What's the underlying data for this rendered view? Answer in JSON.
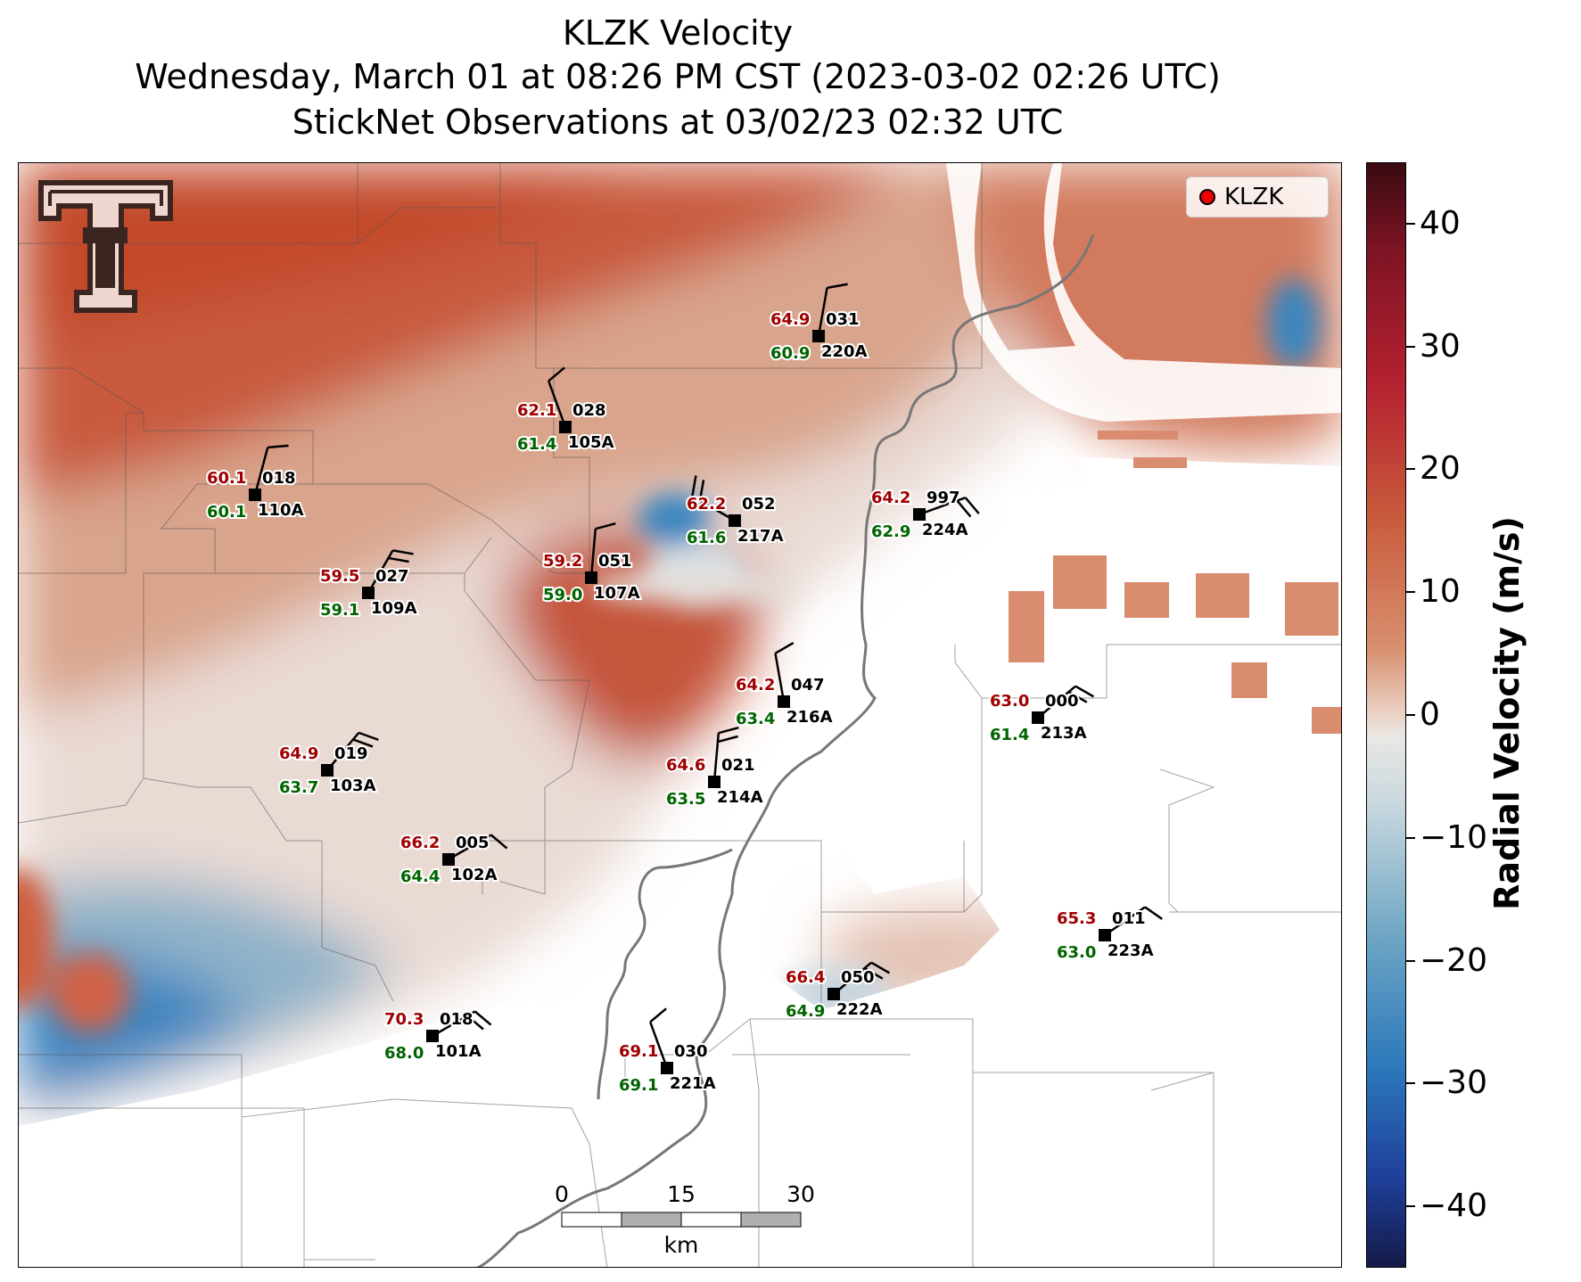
{
  "title": {
    "line1": "KLZK Velocity",
    "line2": "Wednesday, March 01 at 08:26 PM CST (2023-03-02 02:26 UTC)",
    "line3": "StickNet Observations at 03/02/23 02:32 UTC"
  },
  "legend": {
    "label": "KLZK"
  },
  "colorbar": {
    "label": "Radial Velocity (m/s)",
    "ticks": [
      "40",
      "30",
      "20",
      "10",
      "0",
      "−10",
      "−20",
      "−30",
      "−40"
    ],
    "range": [
      -45,
      45
    ]
  },
  "scalebar": {
    "labels": [
      "0",
      "15",
      "30"
    ],
    "unit": "km"
  },
  "logo": {
    "icon": "texas-tech-double-t-logo"
  },
  "colors": {
    "temp": "#a00000",
    "dew": "#006400",
    "id": "#000000",
    "river": "#777777"
  },
  "stations": [
    {
      "id": "220A",
      "temp": "64.9",
      "dew": "60.9",
      "dir": "031"
    },
    {
      "id": "105A",
      "temp": "62.1",
      "dew": "61.4",
      "dir": "028"
    },
    {
      "id": "110A",
      "temp": "60.1",
      "dew": "60.1",
      "dir": "018"
    },
    {
      "id": "217A",
      "temp": "62.2",
      "dew": "61.6",
      "dir": "052"
    },
    {
      "id": "224A",
      "temp": "64.2",
      "dew": "62.9",
      "dir": "997"
    },
    {
      "id": "107A",
      "temp": "59.2",
      "dew": "59.0",
      "dir": "051"
    },
    {
      "id": "109A",
      "temp": "59.5",
      "dew": "59.1",
      "dir": "027"
    },
    {
      "id": "216A",
      "temp": "64.2",
      "dew": "63.4",
      "dir": "047"
    },
    {
      "id": "213A",
      "temp": "63.0",
      "dew": "61.4",
      "dir": "000"
    },
    {
      "id": "103A",
      "temp": "64.9",
      "dew": "63.7",
      "dir": "019"
    },
    {
      "id": "214A",
      "temp": "64.6",
      "dew": "63.5",
      "dir": "021"
    },
    {
      "id": "102A",
      "temp": "66.2",
      "dew": "64.4",
      "dir": "005"
    },
    {
      "id": "223A",
      "temp": "65.3",
      "dew": "63.0",
      "dir": "011"
    },
    {
      "id": "222A",
      "temp": "66.4",
      "dew": "64.9",
      "dir": "050"
    },
    {
      "id": "101A",
      "temp": "70.3",
      "dew": "68.0",
      "dir": "018"
    },
    {
      "id": "221A",
      "temp": "69.1",
      "dew": "69.1",
      "dir": "030"
    }
  ]
}
